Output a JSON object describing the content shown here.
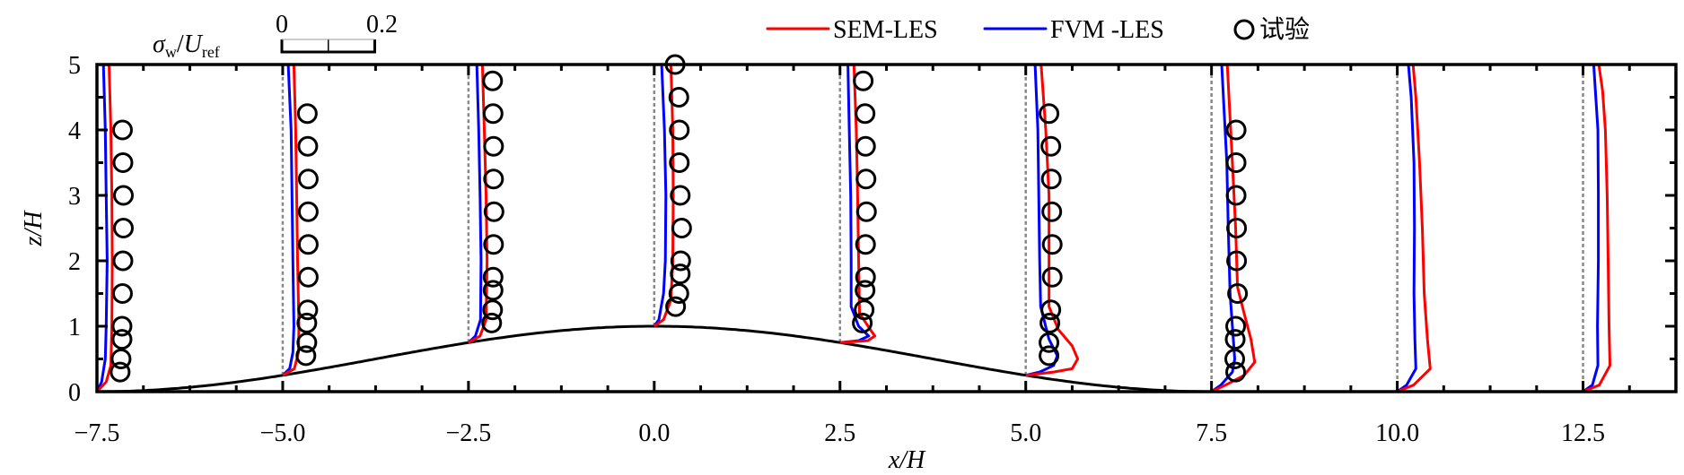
{
  "chart_data": {
    "type": "line",
    "xlabel": "x/H",
    "ylabel": "z/H",
    "xlim": [
      -7.5,
      13.75
    ],
    "ylim": [
      0,
      5
    ],
    "xticks": [
      "-7.5",
      "-5.0",
      "-2.5",
      "0.0",
      "2.5",
      "5.0",
      "7.5",
      "10.0",
      "12.5"
    ],
    "xtick_values": [
      -7.5,
      -5,
      -2.5,
      0,
      2.5,
      5,
      7.5,
      10,
      12.5
    ],
    "yticks": [
      "0",
      "1",
      "2",
      "3",
      "4",
      "5"
    ],
    "ytick_values": [
      0,
      1,
      2,
      3,
      4,
      5
    ],
    "grid": false,
    "legend_placement": "top-right",
    "scale_bar": {
      "label": "σw/Uref",
      "label_main": "σ",
      "label_sub1": "w",
      "label_mid": "/",
      "label_u": "U",
      "label_sub2": "ref",
      "start_label": "0",
      "end_label": "0.2",
      "start": 0,
      "end": 0.2,
      "xh_per_unit": 6.25
    },
    "colors": {
      "SEM-LES": "#ff0000",
      "FVM -LES": "#0000ff",
      "试验": "#000000",
      "baseline": "#888888"
    },
    "legend": [
      {
        "name": "SEM-LES",
        "marker": "line",
        "color": "#ff0000"
      },
      {
        "name": "FVM -LES",
        "marker": "line",
        "color": "#0000ff"
      },
      {
        "name": "试验",
        "marker": "circle",
        "color": "#000000"
      }
    ],
    "hill": {
      "height": 1,
      "half_width": 7.5,
      "shape": "cos^2"
    },
    "stations": [
      {
        "x": -7.5,
        "sem": [
          [
            0,
            0
          ],
          [
            0.15,
            0.02
          ],
          [
            0.4,
            0.03
          ],
          [
            1,
            0.032
          ],
          [
            2,
            0.033
          ],
          [
            3,
            0.032
          ],
          [
            4,
            0.03
          ],
          [
            5,
            0.026
          ]
        ],
        "fvm": [
          [
            0,
            0
          ],
          [
            0.15,
            0.01
          ],
          [
            0.5,
            0.018
          ],
          [
            1,
            0.02
          ],
          [
            2,
            0.022
          ],
          [
            3,
            0.02
          ],
          [
            4,
            0.018
          ],
          [
            5,
            0.014
          ]
        ],
        "exp": [
          [
            0.3,
            0.05
          ],
          [
            0.5,
            0.052
          ],
          [
            0.8,
            0.054
          ],
          [
            1,
            0.054
          ],
          [
            1.5,
            0.055
          ],
          [
            2,
            0.056
          ],
          [
            2.5,
            0.057
          ],
          [
            3,
            0.057
          ],
          [
            3.5,
            0.056
          ],
          [
            4,
            0.055
          ]
        ]
      },
      {
        "x": -5.0,
        "sem": [
          [
            0.25,
            0
          ],
          [
            0.35,
            0.025
          ],
          [
            0.6,
            0.034
          ],
          [
            1,
            0.035
          ],
          [
            2,
            0.032
          ],
          [
            3,
            0.03
          ],
          [
            4,
            0.028
          ],
          [
            5,
            0.024
          ]
        ],
        "fvm": [
          [
            0.25,
            0
          ],
          [
            0.35,
            0.015
          ],
          [
            0.6,
            0.022
          ],
          [
            1,
            0.024
          ],
          [
            2,
            0.022
          ],
          [
            3,
            0.02
          ],
          [
            4,
            0.018
          ],
          [
            5,
            0.012
          ]
        ],
        "exp": [
          [
            0.55,
            0.05
          ],
          [
            0.75,
            0.052
          ],
          [
            1.05,
            0.052
          ],
          [
            1.25,
            0.054
          ],
          [
            1.75,
            0.055
          ],
          [
            2.25,
            0.055
          ],
          [
            2.75,
            0.055
          ],
          [
            3.25,
            0.055
          ],
          [
            3.75,
            0.054
          ],
          [
            4.25,
            0.053
          ]
        ]
      },
      {
        "x": -2.5,
        "sem": [
          [
            0.75,
            0
          ],
          [
            0.85,
            0.025
          ],
          [
            1.1,
            0.038
          ],
          [
            2,
            0.04
          ],
          [
            3,
            0.038
          ],
          [
            4,
            0.034
          ],
          [
            5,
            0.03
          ]
        ],
        "fvm": [
          [
            0.75,
            0
          ],
          [
            0.85,
            0.015
          ],
          [
            1.1,
            0.026
          ],
          [
            2,
            0.027
          ],
          [
            3,
            0.025
          ],
          [
            4,
            0.022
          ],
          [
            5,
            0.018
          ]
        ],
        "exp": [
          [
            1.05,
            0.05
          ],
          [
            1.25,
            0.052
          ],
          [
            1.55,
            0.053
          ],
          [
            1.75,
            0.053
          ],
          [
            2.25,
            0.054
          ],
          [
            2.75,
            0.055
          ],
          [
            3.25,
            0.054
          ],
          [
            3.75,
            0.054
          ],
          [
            4.25,
            0.053
          ],
          [
            4.75,
            0.052
          ]
        ]
      },
      {
        "x": 0.0,
        "sem": [
          [
            1,
            0
          ],
          [
            1.1,
            0.02
          ],
          [
            1.4,
            0.036
          ],
          [
            2,
            0.04
          ],
          [
            3,
            0.041
          ],
          [
            4,
            0.04
          ],
          [
            5,
            0.036
          ]
        ],
        "fvm": [
          [
            1,
            0
          ],
          [
            1.1,
            0.01
          ],
          [
            1.5,
            0.02
          ],
          [
            2,
            0.024
          ],
          [
            3,
            0.025
          ],
          [
            4,
            0.022
          ],
          [
            5,
            0.016
          ]
        ],
        "exp": [
          [
            1.3,
            0.046
          ],
          [
            1.5,
            0.053
          ],
          [
            1.8,
            0.056
          ],
          [
            2,
            0.057
          ],
          [
            2.5,
            0.059
          ],
          [
            3,
            0.056
          ],
          [
            3.5,
            0.054
          ],
          [
            4,
            0.054
          ],
          [
            4.5,
            0.053
          ],
          [
            5,
            0.045
          ]
        ]
      },
      {
        "x": 2.5,
        "sem": [
          [
            0.75,
            0
          ],
          [
            0.78,
            0.06
          ],
          [
            0.85,
            0.075
          ],
          [
            0.95,
            0.065
          ],
          [
            1.2,
            0.042
          ],
          [
            2,
            0.04
          ],
          [
            3,
            0.038
          ],
          [
            4,
            0.035
          ],
          [
            5,
            0.03
          ]
        ],
        "fvm": [
          [
            0.75,
            0
          ],
          [
            0.78,
            0.04
          ],
          [
            0.85,
            0.062
          ],
          [
            1.0,
            0.04
          ],
          [
            1.3,
            0.024
          ],
          [
            2,
            0.024
          ],
          [
            3,
            0.023
          ],
          [
            4,
            0.02
          ],
          [
            5,
            0.017
          ]
        ],
        "exp": [
          [
            1.05,
            0.048
          ],
          [
            1.25,
            0.052
          ],
          [
            1.55,
            0.054
          ],
          [
            1.75,
            0.055
          ],
          [
            2.25,
            0.055
          ],
          [
            2.75,
            0.057
          ],
          [
            3.25,
            0.056
          ],
          [
            3.75,
            0.055
          ],
          [
            4.25,
            0.054
          ],
          [
            4.75,
            0.05
          ]
        ]
      },
      {
        "x": 5.0,
        "sem": [
          [
            0.25,
            0
          ],
          [
            0.3,
            0.06
          ],
          [
            0.35,
            0.1
          ],
          [
            0.5,
            0.112
          ],
          [
            0.7,
            0.1
          ],
          [
            0.95,
            0.07
          ],
          [
            1.3,
            0.05
          ],
          [
            2,
            0.05
          ],
          [
            3,
            0.05
          ],
          [
            4,
            0.043
          ],
          [
            5,
            0.033
          ]
        ],
        "fvm": [
          [
            0.25,
            0
          ],
          [
            0.3,
            0.03
          ],
          [
            0.4,
            0.06
          ],
          [
            0.55,
            0.068
          ],
          [
            0.8,
            0.05
          ],
          [
            1.3,
            0.032
          ],
          [
            2,
            0.03
          ],
          [
            3,
            0.028
          ],
          [
            4,
            0.026
          ],
          [
            5,
            0.02
          ]
        ],
        "exp": [
          [
            0.55,
            0.05
          ],
          [
            0.75,
            0.05
          ],
          [
            1.05,
            0.052
          ],
          [
            1.25,
            0.054
          ],
          [
            1.75,
            0.057
          ],
          [
            2.25,
            0.057
          ],
          [
            2.75,
            0.056
          ],
          [
            3.25,
            0.055
          ],
          [
            3.75,
            0.054
          ],
          [
            4.25,
            0.05
          ]
        ]
      },
      {
        "x": 7.5,
        "sem": [
          [
            0,
            0
          ],
          [
            0.1,
            0.03
          ],
          [
            0.25,
            0.07
          ],
          [
            0.45,
            0.093
          ],
          [
            0.8,
            0.085
          ],
          [
            1.2,
            0.07
          ],
          [
            1.6,
            0.056
          ],
          [
            2.5,
            0.052
          ],
          [
            3.5,
            0.045
          ],
          [
            5,
            0.034
          ]
        ],
        "fvm": [
          [
            0,
            0
          ],
          [
            0.1,
            0.02
          ],
          [
            0.3,
            0.045
          ],
          [
            0.5,
            0.05
          ],
          [
            1.0,
            0.045
          ],
          [
            1.5,
            0.04
          ],
          [
            2.5,
            0.036
          ],
          [
            3.5,
            0.033
          ],
          [
            5,
            0.022
          ]
        ],
        "exp": [
          [
            0.3,
            0.052
          ],
          [
            0.5,
            0.05
          ],
          [
            0.8,
            0.051
          ],
          [
            1,
            0.052
          ],
          [
            1.5,
            0.056
          ],
          [
            2,
            0.054
          ],
          [
            2.5,
            0.054
          ],
          [
            3,
            0.053
          ],
          [
            3.5,
            0.053
          ],
          [
            4,
            0.053
          ]
        ]
      },
      {
        "x": 10.0,
        "sem": [
          [
            0,
            0
          ],
          [
            0.1,
            0.035
          ],
          [
            0.35,
            0.071
          ],
          [
            0.8,
            0.065
          ],
          [
            1.5,
            0.058
          ],
          [
            2.5,
            0.054
          ],
          [
            3.5,
            0.048
          ],
          [
            4.5,
            0.04
          ],
          [
            5,
            0.034
          ]
        ],
        "fvm": [
          [
            0,
            0
          ],
          [
            0.1,
            0.02
          ],
          [
            0.35,
            0.04
          ],
          [
            0.8,
            0.038
          ],
          [
            1.5,
            0.036
          ],
          [
            2.5,
            0.037
          ],
          [
            3.5,
            0.036
          ],
          [
            4.5,
            0.03
          ],
          [
            5,
            0.024
          ]
        ],
        "exp": []
      },
      {
        "x": 12.5,
        "sem": [
          [
            0,
            0
          ],
          [
            0.1,
            0.035
          ],
          [
            0.4,
            0.058
          ],
          [
            1,
            0.056
          ],
          [
            2,
            0.054
          ],
          [
            3,
            0.052
          ],
          [
            4,
            0.048
          ],
          [
            4.6,
            0.042
          ],
          [
            5,
            0.034
          ]
        ],
        "fvm": [
          [
            0,
            0
          ],
          [
            0.1,
            0.02
          ],
          [
            0.4,
            0.032
          ],
          [
            1,
            0.031
          ],
          [
            2,
            0.033
          ],
          [
            3,
            0.033
          ],
          [
            4,
            0.032
          ],
          [
            5,
            0.023
          ]
        ],
        "exp": []
      }
    ]
  }
}
